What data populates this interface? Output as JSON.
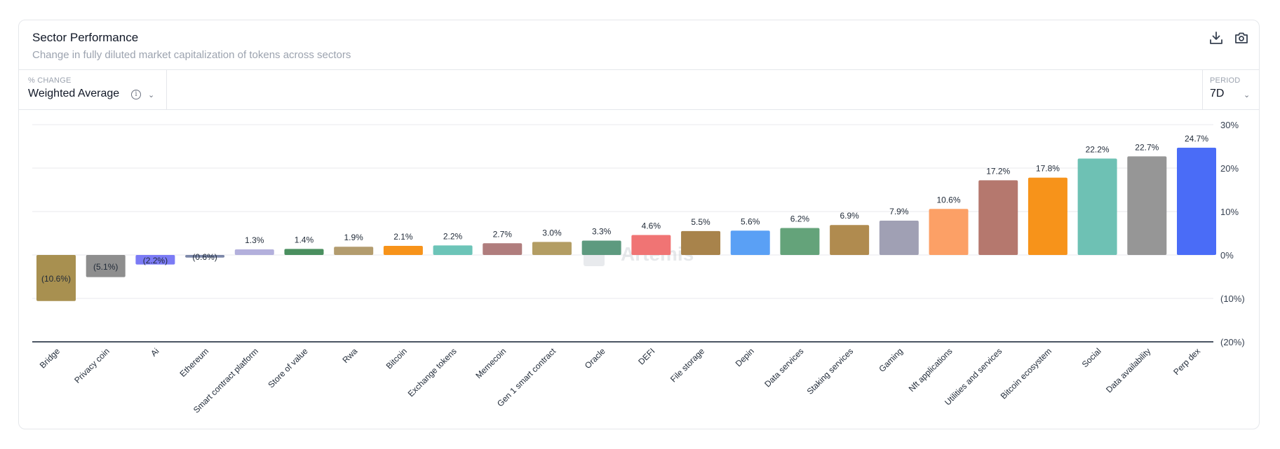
{
  "header": {
    "title": "Sector Performance",
    "subtitle": "Change in fully diluted market capitalization of tokens across sectors",
    "icons": [
      "download-icon",
      "camera-icon"
    ]
  },
  "controls": {
    "metric_label": "% CHANGE",
    "metric_value": "Weighted Average",
    "period_label": "PERIOD",
    "period_value": "7D"
  },
  "watermark": "Artemis",
  "chart_data": {
    "type": "bar",
    "title": "",
    "xlabel": "",
    "ylabel": "",
    "ylim": [
      -20,
      30
    ],
    "yticks": [
      30,
      20,
      10,
      0,
      -10,
      -20
    ],
    "ytick_labels": [
      "30%",
      "20%",
      "10%",
      "0%",
      "(10%)",
      "(20%)"
    ],
    "grid": true,
    "categories": [
      "Bridge",
      "Privacy coin",
      "Ai",
      "Ethereum",
      "Smart contract platform",
      "Store of value",
      "Rwa",
      "Bitcoin",
      "Exchange tokens",
      "Memecoin",
      "Gen 1 smart contract",
      "Oracle",
      "DEFI",
      "File storage",
      "Depin",
      "Data services",
      "Staking services",
      "Gaming",
      "Nft applications",
      "Utilities and services",
      "Bitcoin ecosystem",
      "Social",
      "Data availability",
      "Perp dex"
    ],
    "values": [
      -10.6,
      -5.1,
      -2.2,
      -0.6,
      1.3,
      1.4,
      1.9,
      2.1,
      2.2,
      2.7,
      3.0,
      3.3,
      4.6,
      5.5,
      5.6,
      6.2,
      6.9,
      7.9,
      10.6,
      17.2,
      17.8,
      22.2,
      22.7,
      24.7
    ],
    "data_labels": [
      "(10.6%)",
      "(5.1%)",
      "(2.2%)",
      "(0.6%)",
      "1.3%",
      "1.4%",
      "1.9%",
      "2.1%",
      "2.2%",
      "2.7%",
      "3.0%",
      "3.3%",
      "4.6%",
      "5.5%",
      "5.6%",
      "6.2%",
      "6.9%",
      "7.9%",
      "10.6%",
      "17.2%",
      "17.8%",
      "22.2%",
      "22.7%",
      "24.7%"
    ],
    "colors": [
      "#a89050",
      "#8e8e8e",
      "#7b7bf5",
      "#7b87a8",
      "#b3b0dc",
      "#4a8f5f",
      "#b39c6e",
      "#f7931a",
      "#6cc4b8",
      "#b07d7d",
      "#b39d63",
      "#5d9a7f",
      "#f07474",
      "#a8834b",
      "#5aa0f5",
      "#64a37a",
      "#b08b4f",
      "#a0a0b4",
      "#fca066",
      "#b5786e",
      "#f7931a",
      "#6ec1b4",
      "#969696",
      "#4a6cf7"
    ]
  }
}
